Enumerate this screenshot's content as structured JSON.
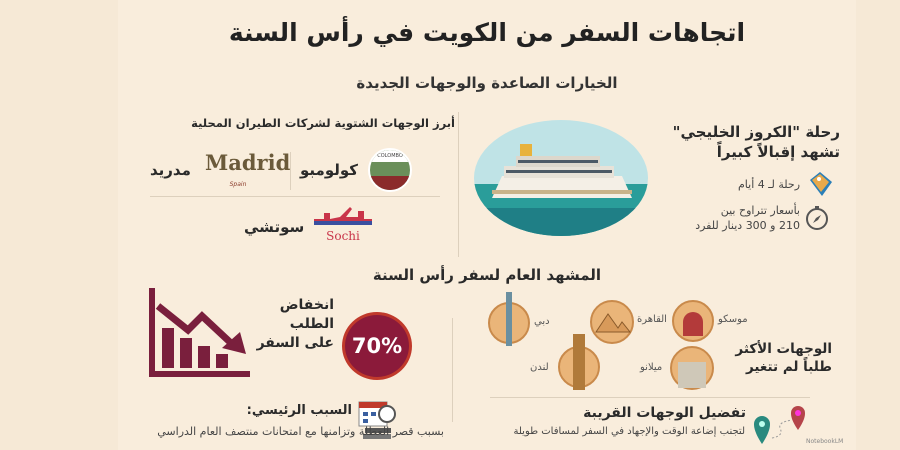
{
  "title": "اتجاهات السفر من الكويت في رأس السنة",
  "subtitle": "الخيارات الصاعدة والوجهات الجديدة",
  "cruise": {
    "heading_line1": "رحلة \"الكروز الخليجي\"",
    "heading_line2": "تشهد إقبالاً كبيراً",
    "duration": "رحلة لـ 4 أيام",
    "price_line1": "بأسعار تتراوح بين",
    "price_line2": "210 و 300 دينار للفرد",
    "icons": [
      "price-tag-icon",
      "compass-icon"
    ]
  },
  "winter": {
    "heading": "أبرز الوجهات الشتوية لشركات الطيران المحلية",
    "destinations": [
      {
        "name": "كولومبو",
        "logo": "COLOMBO"
      },
      {
        "name": "مدريد",
        "logo": "Madrid",
        "logo_sub": "Spain"
      },
      {
        "name": "سوتشي",
        "logo": "Sochi"
      }
    ]
  },
  "overview": {
    "heading": "المشهد العام لسفر رأس السنة"
  },
  "decline": {
    "line1": "انخفاض",
    "line2": "الطلب",
    "line3": "على السفر",
    "percent": "70%"
  },
  "reason": {
    "heading": "السبب الرئيسي:",
    "text": "بسبب قصر العطلة وتزامنها مع امتحانات منتصف العام الدراسي"
  },
  "popular": {
    "heading_line1": "الوجهات الأكثر",
    "heading_line2": "طلباً لم تتغير",
    "cities": [
      "موسكو",
      "القاهرة",
      "دبي",
      "ميلانو",
      "لندن"
    ]
  },
  "nearby": {
    "heading": "تفضيل الوجهات القريبة",
    "text": "لتجنب إضاعة الوقت والإجهاد في السفر لمسافات طويلة"
  },
  "watermark": "NotebookLM",
  "colors": {
    "maroon": "#7a1f3d",
    "accent_red": "#c0392b",
    "sea": "#2a9d9a",
    "pin_teal": "#2a8a7f",
    "pin_red": "#b5444a"
  }
}
